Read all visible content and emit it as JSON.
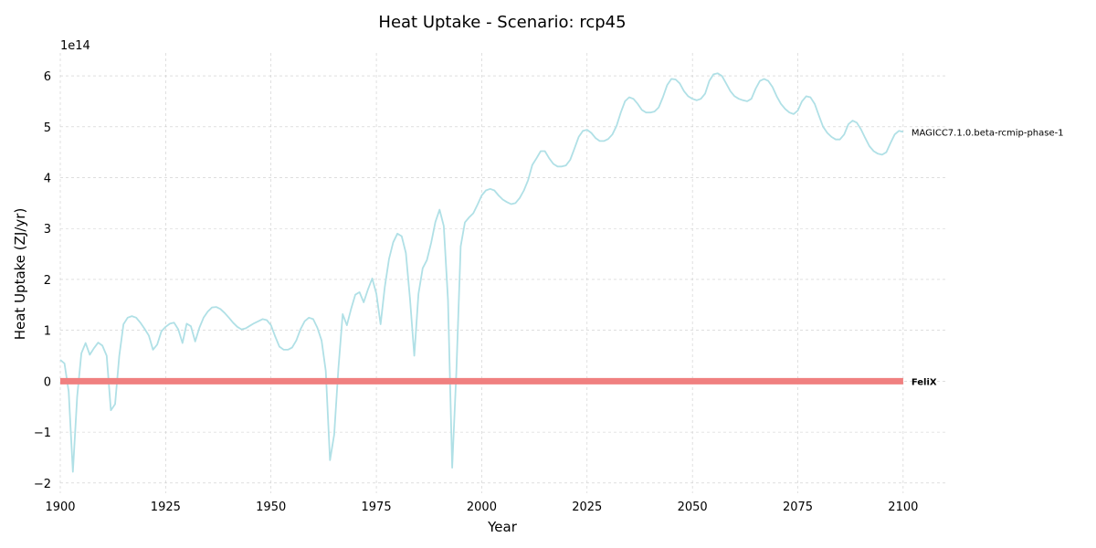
{
  "chart_data": {
    "type": "line",
    "title": "Heat Uptake - Scenario: rcp45",
    "xlabel": "Year",
    "ylabel": "Heat Uptake (ZJ/yr)",
    "y_offset_label": "1e14",
    "xlim": [
      1900,
      2110
    ],
    "ylim": [
      -2.2,
      6.45
    ],
    "y_scale": 100000000000000.0,
    "xticks": [
      1900,
      1925,
      1950,
      1975,
      2000,
      2025,
      2050,
      2075,
      2100
    ],
    "yticks": [
      -2,
      -1,
      0,
      1,
      2,
      3,
      4,
      5,
      6
    ],
    "grid": true,
    "series": [
      {
        "name": "MAGICC7.1.0.beta-rcmip-phase-1",
        "color": "#b0e0e6",
        "label_bold": false,
        "points": [
          [
            1900,
            0.42
          ],
          [
            1901,
            0.35
          ],
          [
            1902,
            -0.2
          ],
          [
            1903,
            -1.78
          ],
          [
            1904,
            -0.3
          ],
          [
            1905,
            0.55
          ],
          [
            1906,
            0.75
          ],
          [
            1907,
            0.52
          ],
          [
            1908,
            0.65
          ],
          [
            1909,
            0.76
          ],
          [
            1910,
            0.7
          ],
          [
            1911,
            0.5
          ],
          [
            1912,
            -0.57
          ],
          [
            1913,
            -0.45
          ],
          [
            1914,
            0.5
          ],
          [
            1915,
            1.12
          ],
          [
            1916,
            1.25
          ],
          [
            1917,
            1.28
          ],
          [
            1918,
            1.25
          ],
          [
            1919,
            1.15
          ],
          [
            1920,
            1.03
          ],
          [
            1921,
            0.9
          ],
          [
            1922,
            0.62
          ],
          [
            1923,
            0.72
          ],
          [
            1924,
            0.98
          ],
          [
            1925,
            1.07
          ],
          [
            1926,
            1.13
          ],
          [
            1927,
            1.15
          ],
          [
            1928,
            1.02
          ],
          [
            1929,
            0.75
          ],
          [
            1930,
            1.13
          ],
          [
            1931,
            1.08
          ],
          [
            1932,
            0.78
          ],
          [
            1933,
            1.05
          ],
          [
            1934,
            1.25
          ],
          [
            1935,
            1.37
          ],
          [
            1936,
            1.45
          ],
          [
            1937,
            1.46
          ],
          [
            1938,
            1.42
          ],
          [
            1939,
            1.34
          ],
          [
            1940,
            1.25
          ],
          [
            1941,
            1.15
          ],
          [
            1942,
            1.07
          ],
          [
            1943,
            1.02
          ],
          [
            1944,
            1.04
          ],
          [
            1945,
            1.09
          ],
          [
            1946,
            1.14
          ],
          [
            1947,
            1.18
          ],
          [
            1948,
            1.22
          ],
          [
            1949,
            1.2
          ],
          [
            1950,
            1.1
          ],
          [
            1951,
            0.88
          ],
          [
            1952,
            0.68
          ],
          [
            1953,
            0.62
          ],
          [
            1954,
            0.62
          ],
          [
            1955,
            0.66
          ],
          [
            1956,
            0.8
          ],
          [
            1957,
            1.02
          ],
          [
            1958,
            1.18
          ],
          [
            1959,
            1.25
          ],
          [
            1960,
            1.22
          ],
          [
            1961,
            1.05
          ],
          [
            1962,
            0.8
          ],
          [
            1963,
            0.2
          ],
          [
            1964,
            -1.55
          ],
          [
            1965,
            -1.05
          ],
          [
            1966,
            0.25
          ],
          [
            1967,
            1.32
          ],
          [
            1968,
            1.1
          ],
          [
            1969,
            1.42
          ],
          [
            1970,
            1.7
          ],
          [
            1971,
            1.75
          ],
          [
            1972,
            1.55
          ],
          [
            1973,
            1.8
          ],
          [
            1974,
            2.02
          ],
          [
            1975,
            1.72
          ],
          [
            1976,
            1.12
          ],
          [
            1977,
            1.85
          ],
          [
            1978,
            2.4
          ],
          [
            1979,
            2.73
          ],
          [
            1980,
            2.9
          ],
          [
            1981,
            2.85
          ],
          [
            1982,
            2.52
          ],
          [
            1983,
            1.6
          ],
          [
            1984,
            0.5
          ],
          [
            1985,
            1.72
          ],
          [
            1986,
            2.22
          ],
          [
            1987,
            2.38
          ],
          [
            1988,
            2.72
          ],
          [
            1989,
            3.13
          ],
          [
            1990,
            3.37
          ],
          [
            1991,
            3.05
          ],
          [
            1992,
            1.6
          ],
          [
            1993,
            -1.7
          ],
          [
            1994,
            0.2
          ],
          [
            1995,
            2.65
          ],
          [
            1996,
            3.12
          ],
          [
            1997,
            3.22
          ],
          [
            1998,
            3.3
          ],
          [
            1999,
            3.47
          ],
          [
            2000,
            3.65
          ],
          [
            2001,
            3.75
          ],
          [
            2002,
            3.78
          ],
          [
            2003,
            3.75
          ],
          [
            2004,
            3.65
          ],
          [
            2005,
            3.57
          ],
          [
            2006,
            3.52
          ],
          [
            2007,
            3.48
          ],
          [
            2008,
            3.5
          ],
          [
            2009,
            3.6
          ],
          [
            2010,
            3.75
          ],
          [
            2011,
            3.95
          ],
          [
            2012,
            4.25
          ],
          [
            2013,
            4.38
          ],
          [
            2014,
            4.52
          ],
          [
            2015,
            4.52
          ],
          [
            2016,
            4.38
          ],
          [
            2017,
            4.27
          ],
          [
            2018,
            4.22
          ],
          [
            2019,
            4.22
          ],
          [
            2020,
            4.24
          ],
          [
            2021,
            4.35
          ],
          [
            2022,
            4.57
          ],
          [
            2023,
            4.8
          ],
          [
            2024,
            4.92
          ],
          [
            2025,
            4.94
          ],
          [
            2026,
            4.88
          ],
          [
            2027,
            4.78
          ],
          [
            2028,
            4.72
          ],
          [
            2029,
            4.72
          ],
          [
            2030,
            4.76
          ],
          [
            2031,
            4.85
          ],
          [
            2032,
            5.02
          ],
          [
            2033,
            5.28
          ],
          [
            2034,
            5.5
          ],
          [
            2035,
            5.58
          ],
          [
            2036,
            5.55
          ],
          [
            2037,
            5.45
          ],
          [
            2038,
            5.33
          ],
          [
            2039,
            5.28
          ],
          [
            2040,
            5.28
          ],
          [
            2041,
            5.3
          ],
          [
            2042,
            5.38
          ],
          [
            2043,
            5.58
          ],
          [
            2044,
            5.82
          ],
          [
            2045,
            5.94
          ],
          [
            2046,
            5.93
          ],
          [
            2047,
            5.85
          ],
          [
            2048,
            5.7
          ],
          [
            2049,
            5.6
          ],
          [
            2050,
            5.55
          ],
          [
            2051,
            5.52
          ],
          [
            2052,
            5.55
          ],
          [
            2053,
            5.65
          ],
          [
            2054,
            5.9
          ],
          [
            2055,
            6.03
          ],
          [
            2056,
            6.05
          ],
          [
            2057,
            6.0
          ],
          [
            2058,
            5.85
          ],
          [
            2059,
            5.7
          ],
          [
            2060,
            5.6
          ],
          [
            2061,
            5.55
          ],
          [
            2062,
            5.52
          ],
          [
            2063,
            5.5
          ],
          [
            2064,
            5.55
          ],
          [
            2065,
            5.75
          ],
          [
            2066,
            5.9
          ],
          [
            2067,
            5.94
          ],
          [
            2068,
            5.9
          ],
          [
            2069,
            5.78
          ],
          [
            2070,
            5.6
          ],
          [
            2071,
            5.45
          ],
          [
            2072,
            5.35
          ],
          [
            2073,
            5.28
          ],
          [
            2074,
            5.25
          ],
          [
            2075,
            5.32
          ],
          [
            2076,
            5.5
          ],
          [
            2077,
            5.6
          ],
          [
            2078,
            5.58
          ],
          [
            2079,
            5.45
          ],
          [
            2080,
            5.22
          ],
          [
            2081,
            5.0
          ],
          [
            2082,
            4.88
          ],
          [
            2083,
            4.8
          ],
          [
            2084,
            4.75
          ],
          [
            2085,
            4.75
          ],
          [
            2086,
            4.85
          ],
          [
            2087,
            5.05
          ],
          [
            2088,
            5.12
          ],
          [
            2089,
            5.08
          ],
          [
            2090,
            4.95
          ],
          [
            2091,
            4.78
          ],
          [
            2092,
            4.62
          ],
          [
            2093,
            4.52
          ],
          [
            2094,
            4.47
          ],
          [
            2095,
            4.45
          ],
          [
            2096,
            4.5
          ],
          [
            2097,
            4.68
          ],
          [
            2098,
            4.85
          ],
          [
            2099,
            4.92
          ],
          [
            2100,
            4.9
          ]
        ]
      },
      {
        "name": "FeliX",
        "color": "#f08080",
        "label_bold": true,
        "points": [
          [
            1900,
            0
          ],
          [
            2100,
            0
          ]
        ]
      }
    ]
  }
}
